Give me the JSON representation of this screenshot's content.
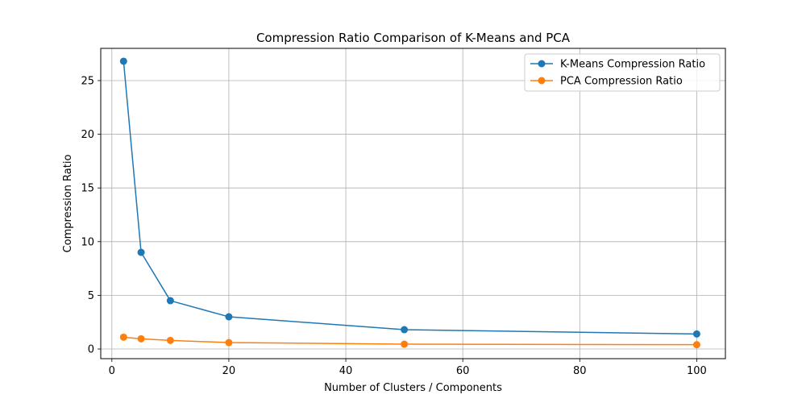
{
  "chart_data": {
    "type": "line",
    "title": "Compression Ratio Comparison of K-Means and PCA",
    "xlabel": "Number of Clusters / Components",
    "ylabel": "Compression Ratio",
    "xlim": [
      -1.9,
      104.9
    ],
    "ylim": [
      -0.9,
      28.0
    ],
    "xticks": [
      0,
      20,
      40,
      60,
      80,
      100
    ],
    "yticks": [
      0,
      5,
      10,
      15,
      20,
      25
    ],
    "grid": true,
    "legend_position": "top-right",
    "series": [
      {
        "name": "K-Means Compression Ratio",
        "color": "#1f77b4",
        "marker": "circle",
        "x": [
          2,
          5,
          10,
          20,
          50,
          100
        ],
        "y": [
          26.8,
          9.0,
          4.5,
          3.0,
          1.8,
          1.4
        ]
      },
      {
        "name": "PCA Compression Ratio",
        "color": "#ff7f0e",
        "marker": "circle",
        "x": [
          2,
          5,
          10,
          20,
          50,
          100
        ],
        "y": [
          1.1,
          0.95,
          0.8,
          0.6,
          0.45,
          0.4
        ]
      }
    ]
  }
}
